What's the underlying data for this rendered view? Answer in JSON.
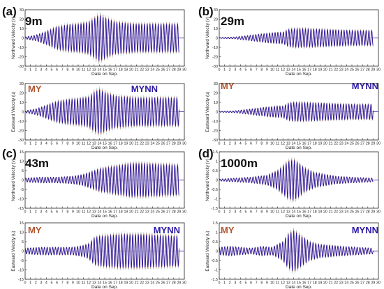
{
  "figure": {
    "panels": [
      {
        "letter": "(a)",
        "depth": "9m"
      },
      {
        "letter": "(b)",
        "depth": "29m"
      },
      {
        "letter": "(c)",
        "depth": "43m"
      },
      {
        "letter": "(d)",
        "depth": "1000m"
      }
    ],
    "legend": {
      "my": "MY",
      "mynn": "MYNN"
    }
  },
  "colors": {
    "my": "#b2562e",
    "mynn": "#2c1aa6",
    "obs": "#d04a1a",
    "alt": "#3db7d8",
    "axis": "#222222"
  },
  "chart_data": [
    {
      "type": "line",
      "panel": "(a)",
      "component": "north",
      "title": "9m",
      "xlabel": "Date on Sep.",
      "ylabel": "Northward Velocity (v)",
      "xlim": [
        0,
        30
      ],
      "ylim": [
        -30,
        30
      ],
      "yticks": [
        -30,
        -20,
        -10,
        0,
        10,
        20,
        30
      ],
      "xticks": [
        0,
        1,
        2,
        3,
        4,
        5,
        6,
        7,
        8,
        9,
        10,
        11,
        12,
        13,
        14,
        15,
        16,
        17,
        18,
        19,
        20,
        21,
        22,
        23,
        24,
        25,
        26,
        27,
        28,
        29,
        30
      ],
      "series": [
        {
          "name": "MY"
        },
        {
          "name": "MYNN"
        }
      ],
      "envelope": {
        "x": [
          0,
          2,
          4,
          6,
          8,
          10,
          12,
          13,
          14,
          15,
          17,
          19,
          21,
          23,
          25,
          27,
          29
        ],
        "amplitude": [
          1,
          3,
          7,
          12,
          14,
          15,
          17,
          21,
          25,
          22,
          17,
          16,
          15,
          15,
          15,
          15,
          15
        ]
      }
    },
    {
      "type": "line",
      "panel": "(a)",
      "component": "east",
      "xlabel": "Date on Sep.",
      "ylabel": "Eastward Velocity (u)",
      "xlim": [
        0,
        30
      ],
      "ylim": [
        -30,
        30
      ],
      "yticks": [
        -30,
        -20,
        -10,
        0,
        10,
        20,
        30
      ],
      "xticks": [
        0,
        1,
        2,
        3,
        4,
        5,
        6,
        7,
        8,
        9,
        10,
        11,
        12,
        13,
        14,
        15,
        16,
        17,
        18,
        19,
        20,
        21,
        22,
        23,
        24,
        25,
        26,
        27,
        28,
        29,
        30
      ],
      "series": [
        {
          "name": "MY"
        },
        {
          "name": "MYNN"
        }
      ],
      "envelope": {
        "x": [
          0,
          2,
          4,
          6,
          8,
          10,
          12,
          13,
          14,
          15,
          17,
          19,
          21,
          23,
          25,
          27,
          29
        ],
        "amplitude": [
          1,
          3,
          7,
          11,
          13,
          14,
          16,
          21,
          24,
          21,
          17,
          16,
          15,
          15,
          15,
          15,
          15
        ]
      }
    },
    {
      "type": "line",
      "panel": "(b)",
      "component": "north",
      "title": "29m",
      "xlabel": "Date on Sep.",
      "ylabel": "Northward Velocity (v)",
      "xlim": [
        0,
        30
      ],
      "ylim": [
        -30,
        30
      ],
      "yticks": [
        -30,
        -20,
        -10,
        0,
        10,
        20,
        30
      ],
      "xticks": [
        0,
        1,
        2,
        3,
        4,
        5,
        6,
        7,
        8,
        9,
        10,
        11,
        12,
        13,
        14,
        15,
        16,
        17,
        18,
        19,
        20,
        21,
        22,
        23,
        24,
        25,
        26,
        27,
        28,
        29,
        30
      ],
      "series": [
        {
          "name": "MY"
        },
        {
          "name": "MYNN"
        }
      ],
      "envelope": {
        "x": [
          0,
          3,
          6,
          9,
          11,
          12,
          13,
          14,
          16,
          20,
          25,
          29
        ],
        "amplitude": [
          0.5,
          1,
          3,
          5,
          6,
          6,
          9,
          10,
          10,
          9,
          8,
          8
        ]
      }
    },
    {
      "type": "line",
      "panel": "(b)",
      "component": "east",
      "xlabel": "Date on Sep.",
      "ylabel": "Eastward Velocity (u)",
      "xlim": [
        0,
        30
      ],
      "ylim": [
        -30,
        30
      ],
      "yticks": [
        -30,
        -20,
        -10,
        0,
        10,
        20,
        30
      ],
      "xticks": [
        0,
        1,
        2,
        3,
        4,
        5,
        6,
        7,
        8,
        9,
        10,
        11,
        12,
        13,
        14,
        15,
        16,
        17,
        18,
        19,
        20,
        21,
        22,
        23,
        24,
        25,
        26,
        27,
        28,
        29,
        30
      ],
      "series": [
        {
          "name": "MY"
        },
        {
          "name": "MYNN"
        }
      ],
      "envelope": {
        "x": [
          0,
          3,
          6,
          9,
          11,
          12,
          13,
          14,
          16,
          20,
          25,
          29
        ],
        "amplitude": [
          0.5,
          1,
          3,
          5,
          6,
          6,
          9,
          10,
          10,
          9,
          8,
          8
        ]
      }
    },
    {
      "type": "line",
      "panel": "(c)",
      "component": "north",
      "title": "43m",
      "xlabel": "Date on Sep.",
      "ylabel": "Northward Velocity (v)",
      "xlim": [
        0,
        30
      ],
      "ylim": [
        -15,
        15
      ],
      "yticks": [
        -15,
        -10,
        -5,
        0,
        5,
        10,
        15
      ],
      "xticks": [
        0,
        1,
        2,
        3,
        4,
        5,
        6,
        7,
        8,
        9,
        10,
        11,
        12,
        13,
        14,
        15,
        16,
        17,
        18,
        19,
        20,
        21,
        22,
        23,
        24,
        25,
        26,
        27,
        28,
        29,
        30
      ],
      "series": [
        {
          "name": "MY"
        },
        {
          "name": "MYNN"
        }
      ],
      "envelope": {
        "x": [
          0,
          3,
          6,
          9,
          11,
          12,
          13,
          14,
          16,
          18,
          20,
          22,
          25,
          29
        ],
        "amplitude": [
          1,
          1.5,
          1.5,
          2,
          3,
          4,
          5,
          6,
          7,
          8,
          9,
          9,
          8.5,
          8
        ]
      }
    },
    {
      "type": "line",
      "panel": "(c)",
      "component": "east",
      "xlabel": "Date on Sep.",
      "ylabel": "Eastward Velocity (u)",
      "xlim": [
        0,
        30
      ],
      "ylim": [
        -15,
        15
      ],
      "yticks": [
        -15,
        -10,
        -5,
        0,
        5,
        10,
        15
      ],
      "xticks": [
        0,
        1,
        2,
        3,
        4,
        5,
        6,
        7,
        8,
        9,
        10,
        11,
        12,
        13,
        14,
        15,
        16,
        17,
        18,
        19,
        20,
        21,
        22,
        23,
        24,
        25,
        26,
        27,
        28,
        29,
        30
      ],
      "series": [
        {
          "name": "MY"
        },
        {
          "name": "MYNN"
        }
      ],
      "envelope": {
        "x": [
          0,
          3,
          6,
          9,
          11,
          12,
          13,
          14,
          16,
          18,
          20,
          22,
          25,
          29
        ],
        "amplitude": [
          1.5,
          2,
          2,
          2,
          3,
          4,
          7,
          8,
          8.5,
          9,
          9,
          9,
          8.5,
          8
        ]
      }
    },
    {
      "type": "line",
      "panel": "(d)",
      "component": "north",
      "title": "1000m",
      "xlabel": "Date on Sep.",
      "ylabel": "Northward Velocity (v)",
      "xlim": [
        0,
        30
      ],
      "ylim": [
        -1.5,
        1.5
      ],
      "yticks": [
        -1.5,
        -1.0,
        -0.5,
        0,
        0.5,
        1.0,
        1.5
      ],
      "xticks": [
        0,
        1,
        2,
        3,
        4,
        5,
        6,
        7,
        8,
        9,
        10,
        11,
        12,
        13,
        14,
        15,
        16,
        17,
        18,
        19,
        20,
        21,
        22,
        23,
        24,
        25,
        26,
        27,
        28,
        29,
        30
      ],
      "series": [
        {
          "name": "MY"
        },
        {
          "name": "MYNN"
        }
      ],
      "envelope": {
        "x": [
          0,
          3,
          6,
          9,
          11,
          12,
          13,
          14,
          15,
          16,
          18,
          20,
          22,
          25,
          29
        ],
        "amplitude": [
          0.05,
          0.1,
          0.15,
          0.25,
          0.5,
          0.75,
          1.0,
          1.1,
          0.9,
          0.65,
          0.4,
          0.3,
          0.2,
          0.15,
          0.1
        ]
      }
    },
    {
      "type": "line",
      "panel": "(d)",
      "component": "east",
      "xlabel": "Date on Sep.",
      "ylabel": "Eastward Velocity (u)",
      "xlim": [
        0,
        30
      ],
      "ylim": [
        -1.5,
        1.5
      ],
      "yticks": [
        -1.5,
        -1.0,
        -0.5,
        0,
        0.5,
        1.0,
        1.5
      ],
      "xticks": [
        0,
        1,
        2,
        3,
        4,
        5,
        6,
        7,
        8,
        9,
        10,
        11,
        12,
        13,
        14,
        15,
        16,
        17,
        18,
        19,
        20,
        21,
        22,
        23,
        24,
        25,
        26,
        27,
        28,
        29,
        30
      ],
      "series": [
        {
          "name": "MY"
        },
        {
          "name": "MYNN"
        }
      ],
      "envelope": {
        "x": [
          0,
          2,
          4,
          6,
          8,
          10,
          12,
          13,
          14,
          15,
          17,
          19,
          21,
          23,
          26,
          29
        ],
        "amplitude": [
          0.2,
          0.25,
          0.2,
          0.15,
          0.25,
          0.2,
          0.5,
          0.9,
          1.1,
          0.9,
          0.5,
          0.35,
          0.3,
          0.25,
          0.2,
          0.15
        ]
      }
    }
  ]
}
